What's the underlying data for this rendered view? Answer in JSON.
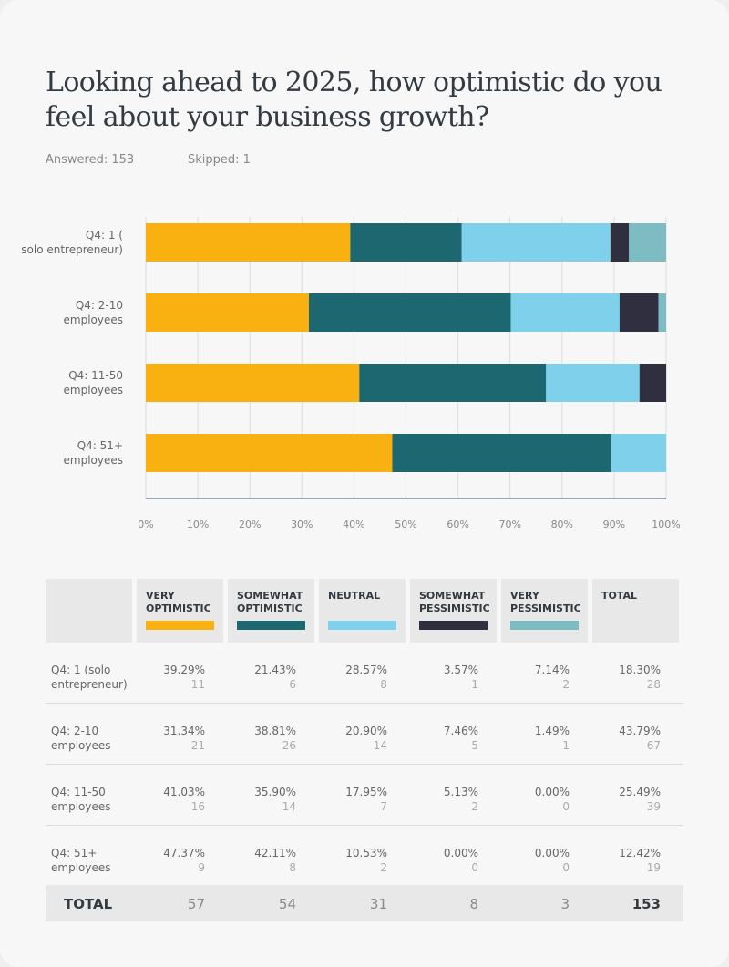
{
  "question": {
    "title": "Looking ahead to 2025, how optimistic do you feel about your business growth?",
    "answered": "Answered: 153",
    "skipped": "Skipped: 1"
  },
  "chart_data": {
    "type": "bar",
    "orientation": "horizontal",
    "stacked": true,
    "categories": [
      "Q4: 1 (solo entrepreneur)",
      "Q4: 2-10 employees",
      "Q4: 11-50 employees",
      "Q4: 51+ employees"
    ],
    "series": [
      {
        "name": "VERY OPTIMISTIC",
        "color": "#f9b112",
        "values": [
          39.29,
          31.34,
          41.03,
          47.37
        ]
      },
      {
        "name": "SOMEWHAT OPTIMISTIC",
        "color": "#1c6770",
        "values": [
          21.43,
          38.81,
          35.9,
          42.11
        ]
      },
      {
        "name": "NEUTRAL",
        "color": "#7fd0ea",
        "values": [
          28.57,
          20.9,
          17.95,
          10.53
        ]
      },
      {
        "name": "SOMEWHAT PESSIMISTIC",
        "color": "#2f2f3f",
        "values": [
          3.57,
          7.46,
          5.13,
          0.0
        ]
      },
      {
        "name": "VERY PESSIMISTIC",
        "color": "#7cbcc2",
        "values": [
          7.14,
          1.49,
          0.0,
          0.0
        ]
      }
    ],
    "xlim": [
      0,
      100
    ],
    "xticks": [
      "0%",
      "10%",
      "20%",
      "30%",
      "40%",
      "50%",
      "60%",
      "70%",
      "80%",
      "90%",
      "100%"
    ],
    "grid": true
  },
  "table": {
    "headers": [
      "VERY OPTIMISTIC",
      "SOMEWHAT OPTIMISTIC",
      "NEUTRAL",
      "SOMEWHAT PESSIMISTIC",
      "VERY PESSIMISTIC",
      "TOTAL"
    ],
    "rows": [
      {
        "label": "Q4: 1 (solo entrepreneur)",
        "cells": [
          {
            "pct": "39.29%",
            "count": "11"
          },
          {
            "pct": "21.43%",
            "count": "6"
          },
          {
            "pct": "28.57%",
            "count": "8"
          },
          {
            "pct": "3.57%",
            "count": "1"
          },
          {
            "pct": "7.14%",
            "count": "2"
          },
          {
            "pct": "18.30%",
            "count": "28"
          }
        ]
      },
      {
        "label": "Q4: 2-10 employees",
        "cells": [
          {
            "pct": "31.34%",
            "count": "21"
          },
          {
            "pct": "38.81%",
            "count": "26"
          },
          {
            "pct": "20.90%",
            "count": "14"
          },
          {
            "pct": "7.46%",
            "count": "5"
          },
          {
            "pct": "1.49%",
            "count": "1"
          },
          {
            "pct": "43.79%",
            "count": "67"
          }
        ]
      },
      {
        "label": "Q4: 11-50 employees",
        "cells": [
          {
            "pct": "41.03%",
            "count": "16"
          },
          {
            "pct": "35.90%",
            "count": "14"
          },
          {
            "pct": "17.95%",
            "count": "7"
          },
          {
            "pct": "5.13%",
            "count": "2"
          },
          {
            "pct": "0.00%",
            "count": "0"
          },
          {
            "pct": "25.49%",
            "count": "39"
          }
        ]
      },
      {
        "label": "Q4: 51+ employees",
        "cells": [
          {
            "pct": "47.37%",
            "count": "9"
          },
          {
            "pct": "42.11%",
            "count": "8"
          },
          {
            "pct": "10.53%",
            "count": "2"
          },
          {
            "pct": "0.00%",
            "count": "0"
          },
          {
            "pct": "0.00%",
            "count": "0"
          },
          {
            "pct": "12.42%",
            "count": "19"
          }
        ]
      }
    ],
    "total_label": "TOTAL",
    "totals": [
      "57",
      "54",
      "31",
      "8",
      "3",
      "153"
    ]
  }
}
